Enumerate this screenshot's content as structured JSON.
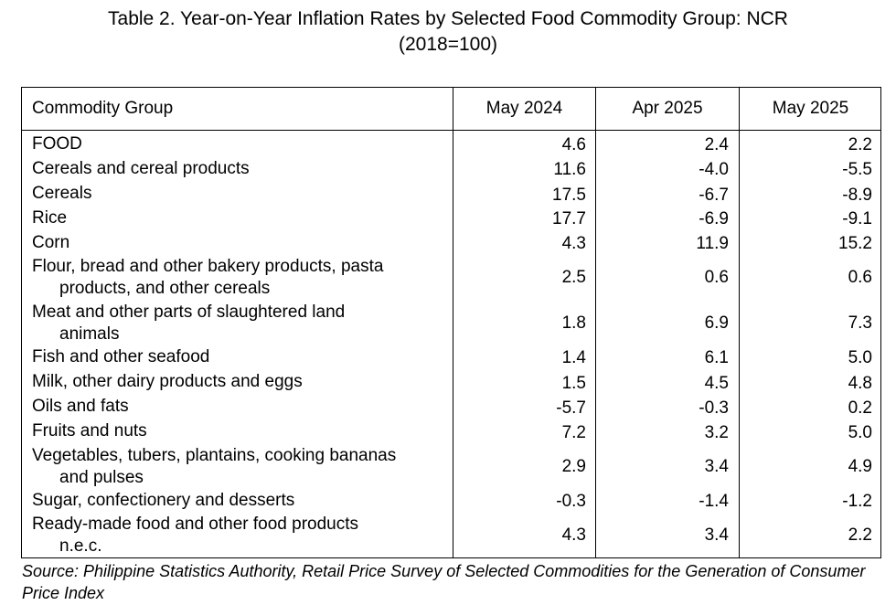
{
  "title": {
    "line1": "Table 2. Year-on-Year Inflation Rates by Selected Food Commodity Group: NCR",
    "line2": "(2018=100)"
  },
  "table": {
    "headers": [
      "Commodity Group",
      "May 2024",
      "Apr 2025",
      "May 2025"
    ],
    "rows": [
      {
        "label1": "FOOD",
        "label2": "",
        "v1": "4.6",
        "v2": "2.4",
        "v3": "2.2"
      },
      {
        "label1": "Cereals and cereal products",
        "label2": "",
        "v1": "11.6",
        "v2": "-4.0",
        "v3": "-5.5"
      },
      {
        "label1": "Cereals",
        "label2": "",
        "v1": "17.5",
        "v2": "-6.7",
        "v3": "-8.9"
      },
      {
        "label1": "Rice",
        "label2": "",
        "v1": "17.7",
        "v2": "-6.9",
        "v3": "-9.1"
      },
      {
        "label1": "Corn",
        "label2": "",
        "v1": "4.3",
        "v2": "11.9",
        "v3": "15.2"
      },
      {
        "label1": "Flour, bread and other bakery products, pasta",
        "label2": "products,  and other cereals",
        "v1": "2.5",
        "v2": "0.6",
        "v3": "0.6"
      },
      {
        "label1": "Meat and other parts of slaughtered land",
        "label2": "animals",
        "v1": "1.8",
        "v2": "6.9",
        "v3": "7.3"
      },
      {
        "label1": "Fish and other seafood",
        "label2": "",
        "v1": "1.4",
        "v2": "6.1",
        "v3": "5.0"
      },
      {
        "label1": "Milk, other dairy products and eggs",
        "label2": "",
        "v1": "1.5",
        "v2": "4.5",
        "v3": "4.8"
      },
      {
        "label1": "Oils and fats",
        "label2": "",
        "v1": "-5.7",
        "v2": "-0.3",
        "v3": "0.2"
      },
      {
        "label1": "Fruits and nuts",
        "label2": "",
        "v1": "7.2",
        "v2": "3.2",
        "v3": "5.0"
      },
      {
        "label1": "Vegetables, tubers, plantains, cooking bananas",
        "label2": "and pulses",
        "v1": "2.9",
        "v2": "3.4",
        "v3": "4.9"
      },
      {
        "label1": "Sugar, confectionery and desserts",
        "label2": "",
        "v1": "-0.3",
        "v2": "-1.4",
        "v3": "-1.2"
      },
      {
        "label1": "Ready-made food and other food products",
        "label2": "n.e.c.",
        "v1": "4.3",
        "v2": "3.4",
        "v3": "2.2"
      }
    ]
  },
  "source": "Source: Philippine Statistics Authority, Retail Price Survey of Selected Commodities for the Generation of Consumer Price Index"
}
